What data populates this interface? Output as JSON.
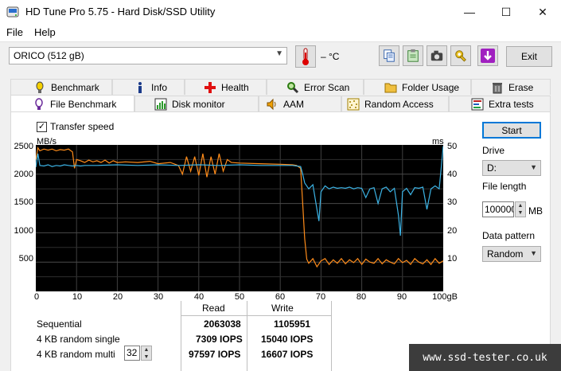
{
  "window": {
    "title": "HD Tune Pro 5.75 - Hard Disk/SSD Utility",
    "min_glyph": "—",
    "max_glyph": "☐",
    "close_glyph": "✕"
  },
  "menu": {
    "file": "File",
    "help": "Help"
  },
  "toolbar": {
    "drive": "ORICO (512 gB)",
    "temperature": "– °C",
    "exit": "Exit"
  },
  "tabs_top": [
    {
      "label": "Benchmark",
      "icon": "benchmark-icon"
    },
    {
      "label": "Info",
      "icon": "info-icon"
    },
    {
      "label": "Health",
      "icon": "health-icon"
    },
    {
      "label": "Error Scan",
      "icon": "error-scan-icon"
    },
    {
      "label": "Folder Usage",
      "icon": "folder-icon"
    },
    {
      "label": "Erase",
      "icon": "trash-icon"
    }
  ],
  "tabs_bottom": [
    {
      "label": "File Benchmark",
      "icon": "file-benchmark-icon",
      "active": true
    },
    {
      "label": "Disk monitor",
      "icon": "disk-monitor-icon"
    },
    {
      "label": "AAM",
      "icon": "speaker-icon"
    },
    {
      "label": "Random Access",
      "icon": "random-access-icon"
    },
    {
      "label": "Extra tests",
      "icon": "extra-tests-icon"
    }
  ],
  "options": {
    "transfer_speed_label": "Transfer speed",
    "transfer_speed_checked": true
  },
  "side": {
    "start": "Start",
    "drive_label": "Drive",
    "drive_value": "D:",
    "file_length_label": "File length",
    "file_length_value": "100000",
    "file_length_unit": "MB",
    "data_pattern_label": "Data pattern",
    "data_pattern_value": "Random"
  },
  "chart_data": {
    "type": "line",
    "y_left_unit": "MB/s",
    "y_right_unit": "ms",
    "y_left_ticks": [
      "2500",
      "2000",
      "1500",
      "1000",
      "500"
    ],
    "y_right_ticks": [
      "50",
      "40",
      "30",
      "20",
      "10"
    ],
    "x_ticks": [
      "0",
      "10",
      "20",
      "30",
      "40",
      "50",
      "60",
      "70",
      "80",
      "90",
      "100gB"
    ],
    "xlim": [
      0,
      100
    ],
    "ylim_left": [
      0,
      2500
    ],
    "ylim_right": [
      0,
      50
    ],
    "grid": true,
    "series": [
      {
        "color": "#ff8c1a",
        "axis": "left",
        "x": [
          0,
          0.5,
          1,
          2,
          3,
          4,
          5,
          6,
          7,
          8,
          9,
          9.5,
          10,
          11,
          12,
          13,
          14,
          15,
          16,
          17,
          18,
          19,
          20,
          22,
          25,
          28,
          30,
          33,
          35,
          36,
          37,
          38,
          39,
          40,
          41,
          42,
          43,
          44,
          45,
          46,
          47,
          48,
          50,
          55,
          60,
          63,
          64,
          65,
          65.5,
          66,
          66.5,
          67,
          68,
          69,
          70,
          71,
          72,
          73,
          74,
          75,
          76,
          77,
          78,
          79,
          80,
          81,
          82,
          83,
          84,
          85,
          86,
          87,
          88,
          89,
          90,
          91,
          92,
          93,
          94,
          95,
          96,
          97,
          98,
          99,
          100
        ],
        "y": [
          2250,
          2450,
          2400,
          2430,
          2410,
          2430,
          2400,
          2420,
          2410,
          2430,
          2380,
          2100,
          2250,
          2230,
          2200,
          2240,
          2210,
          2230,
          2200,
          2240,
          2190,
          2230,
          2200,
          2210,
          2200,
          2220,
          2180,
          2200,
          2150,
          2000,
          2300,
          2050,
          2300,
          1980,
          2350,
          1950,
          2300,
          2000,
          2350,
          2050,
          2250,
          2200,
          2190,
          2180,
          2170,
          2160,
          2150,
          2100,
          1500,
          900,
          550,
          480,
          560,
          420,
          520,
          560,
          460,
          540,
          480,
          560,
          470,
          540,
          490,
          560,
          460,
          550,
          500,
          480,
          560,
          470,
          540,
          500,
          470,
          560,
          490,
          530,
          460,
          560,
          500,
          470,
          540,
          460,
          560,
          480,
          520
        ]
      },
      {
        "color": "#3cb4e6",
        "axis": "left",
        "x": [
          0,
          0.5,
          1,
          2,
          3,
          4,
          5,
          6,
          7,
          8,
          9,
          10,
          11,
          12,
          15,
          20,
          25,
          30,
          35,
          40,
          45,
          50,
          55,
          60,
          63,
          64,
          65,
          65.5,
          66,
          67,
          68,
          69,
          69.5,
          70,
          71,
          72,
          73,
          74,
          75,
          76,
          77,
          78,
          79,
          80,
          81,
          82,
          83,
          84,
          85,
          86,
          87,
          88,
          89,
          89.5,
          90,
          91,
          92,
          93,
          94,
          95,
          96,
          97,
          98,
          99,
          99.5,
          100
        ],
        "y": [
          2120,
          2350,
          2150,
          2140,
          2160,
          2130,
          2150,
          2140,
          2160,
          2150,
          2140,
          2150,
          2140,
          2150,
          2150,
          2160,
          2150,
          2160,
          2150,
          2160,
          2150,
          2160,
          2150,
          2150,
          2150,
          2140,
          2130,
          2000,
          1850,
          1750,
          1820,
          1400,
          1200,
          1700,
          1800,
          1750,
          1780,
          1760,
          1770,
          1760,
          1780,
          1750,
          1770,
          1760,
          1600,
          1750,
          1770,
          1500,
          1750,
          1780,
          1700,
          1760,
          1300,
          950,
          1700,
          1760,
          1650,
          1770,
          1760,
          1780,
          1400,
          1750,
          1800,
          1750,
          2100,
          2480
        ]
      }
    ]
  },
  "results": {
    "read_header": "Read",
    "write_header": "Write",
    "rows": [
      {
        "label": "Sequential",
        "read": "2063038",
        "write": "1105951"
      },
      {
        "label": "4 KB random single",
        "read": "7309 IOPS",
        "write": "15040 IOPS"
      },
      {
        "label": "4 KB random multi",
        "read": "97597 IOPS",
        "write": "16607 IOPS"
      }
    ],
    "queue_depth": "32"
  },
  "watermark": "www.ssd-tester.co.uk"
}
